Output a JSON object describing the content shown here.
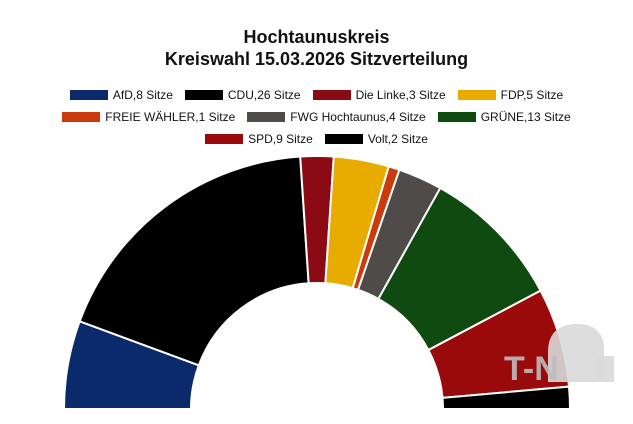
{
  "colors": {
    "background": "#ffffff",
    "separator": "#ffffff",
    "watermark": "#d9d9d9"
  },
  "watermark": {
    "text": "T-N",
    "icon": "cloud-icon"
  },
  "chart_data": {
    "type": "pie",
    "subtype": "parliament-semicircle",
    "title": "Hochtaunuskreis",
    "subtitle": "Kreiswahl 15.03.2026 Sitzverteilung",
    "legend_placement": "top",
    "grid": false,
    "unit": "Sitze",
    "categories": [
      "AfD",
      "CDU",
      "Die Linke",
      "FDP",
      "FREIE WÄHLER",
      "FWG Hochtaunus",
      "GRÜNE",
      "SPD",
      "Volt"
    ],
    "values": [
      8,
      26,
      3,
      5,
      1,
      4,
      13,
      9,
      2
    ],
    "colors": [
      "#0b2a6b",
      "#000000",
      "#8b0a14",
      "#e8ab00",
      "#c93a0c",
      "#4f4b48",
      "#0f4a10",
      "#9b0a0a",
      "#000000"
    ],
    "legend_labels": [
      "AfD,8 Sitze",
      "CDU,26 Sitze",
      "Die Linke,3 Sitze",
      "FDP,5 Sitze",
      "FREIE WÄHLER,1 Sitze",
      "FWG Hochtaunus,4 Sitze",
      "GRÜNE,13 Sitze",
      "SPD,9 Sitze",
      "Volt,2 Sitze"
    ]
  }
}
